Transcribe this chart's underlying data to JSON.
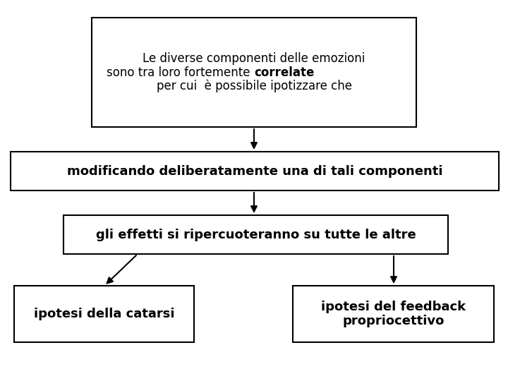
{
  "background_color": "#ffffff",
  "fig_width": 7.2,
  "fig_height": 5.4,
  "dpi": 100,
  "boxes": [
    {
      "id": "box1",
      "xpix": 130,
      "ypix": 25,
      "wpix": 460,
      "hpix": 155,
      "lines": [
        {
          "text": "Le diverse componenti delle emozioni",
          "bold": false
        },
        {
          "text": "sono tra loro fortemente ",
          "bold": false,
          "suffix": "correlate",
          "suffix_bold": true
        },
        {
          "text": "per cui  è possibile ipotizzare che",
          "bold": false
        }
      ],
      "fontsize": 12
    },
    {
      "id": "box2",
      "xpix": 15,
      "ypix": 215,
      "wpix": 692,
      "hpix": 55,
      "lines": [
        {
          "text": "modificando deliberatamente una di tali componenti",
          "bold": true
        }
      ],
      "fontsize": 13
    },
    {
      "id": "box3",
      "xpix": 90,
      "ypix": 305,
      "wpix": 545,
      "hpix": 55,
      "lines": [
        {
          "text": "gli effetti si ripercuoteranno su tutte le altre",
          "bold": true
        }
      ],
      "fontsize": 13
    },
    {
      "id": "box4",
      "xpix": 20,
      "ypix": 405,
      "wpix": 255,
      "hpix": 80,
      "lines": [
        {
          "text": "ipotesi della catarsi",
          "bold": true
        }
      ],
      "fontsize": 13
    },
    {
      "id": "box5",
      "xpix": 415,
      "ypix": 405,
      "wpix": 285,
      "hpix": 80,
      "lines": [
        {
          "text": "ipotesi del feedback",
          "bold": true
        },
        {
          "text": "propriocettivo",
          "bold": true
        }
      ],
      "fontsize": 13
    }
  ],
  "arrows": [
    {
      "x1pix": 360,
      "y1pix": 180,
      "x2pix": 360,
      "y2pix": 215
    },
    {
      "x1pix": 360,
      "y1pix": 270,
      "x2pix": 360,
      "y2pix": 305
    },
    {
      "x1pix": 195,
      "y1pix": 360,
      "x2pix": 148,
      "y2pix": 405
    },
    {
      "x1pix": 558,
      "y1pix": 360,
      "x2pix": 558,
      "y2pix": 405
    }
  ],
  "arrow_color": "#000000",
  "box_edgecolor": "#000000",
  "box_facecolor": "#ffffff",
  "text_color": "#000000"
}
